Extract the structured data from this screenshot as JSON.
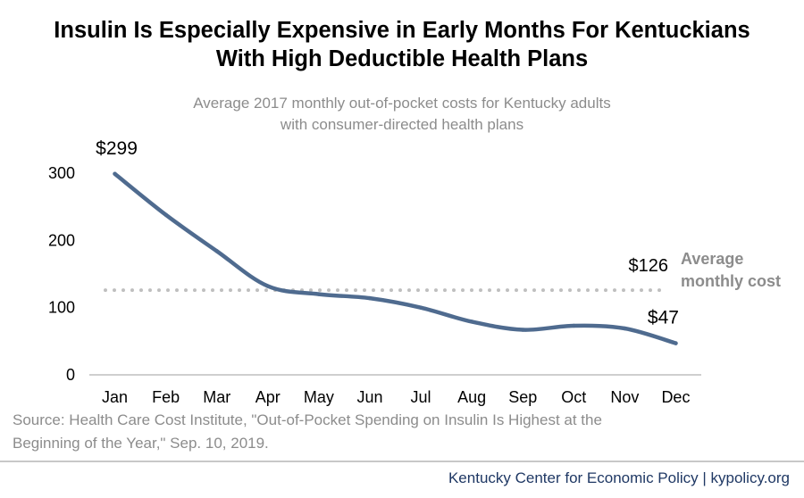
{
  "title_lines": [
    "Insulin Is Especially Expensive in Early Months For Kentuckians",
    "With High Deductible Health Plans"
  ],
  "subtitle_lines": [
    "Average 2017 monthly out-of-pocket costs for Kentucky adults",
    "with consumer-directed health plans"
  ],
  "source_lines": [
    "Source: Health Care Cost Institute, \"Out-of-Pocket Spending on Insulin Is Highest at the",
    "Beginning of the Year,\" Sep. 10, 2019."
  ],
  "footer": "Kentucky Center for Economic Policy | kypolicy.org",
  "colors": {
    "line": "#4f6b8f",
    "average": "#bfbfbf",
    "muted_text": "#8c8c8c",
    "footer": "#1f3864"
  },
  "chart_data": {
    "type": "line",
    "categories": [
      "Jan",
      "Feb",
      "Mar",
      "Apr",
      "May",
      "Jun",
      "Jul",
      "Aug",
      "Sep",
      "Oct",
      "Nov",
      "Dec"
    ],
    "series": [
      {
        "values": [
          299,
          238,
          184,
          132,
          120,
          114,
          100,
          79,
          67,
          73,
          69,
          47
        ]
      }
    ],
    "yticks": [
      0,
      100,
      200,
      300
    ],
    "ylim": [
      0,
      300
    ],
    "grid": false,
    "average": {
      "value": 126,
      "label": "$126",
      "caption_lines": [
        "Average",
        "monthly cost"
      ]
    },
    "data_labels": [
      {
        "index": 0,
        "text": "$299"
      },
      {
        "index": 11,
        "text": "$47"
      }
    ]
  }
}
